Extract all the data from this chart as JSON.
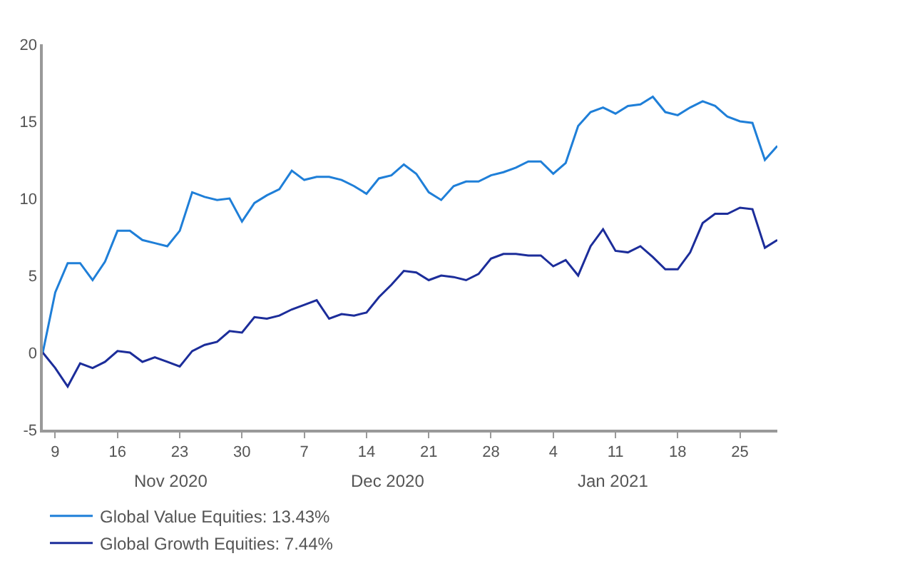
{
  "chart_data": {
    "type": "line",
    "categories": [
      null,
      "9",
      null,
      null,
      null,
      null,
      "16",
      null,
      null,
      null,
      null,
      "23",
      null,
      null,
      null,
      null,
      "30",
      null,
      null,
      null,
      null,
      "7",
      null,
      null,
      null,
      null,
      "14",
      null,
      null,
      null,
      null,
      "21",
      null,
      null,
      null,
      null,
      "28",
      null,
      null,
      null,
      null,
      "4",
      null,
      null,
      null,
      null,
      "11",
      null,
      null,
      null,
      null,
      "18",
      null,
      null,
      null,
      null,
      "25",
      null,
      null,
      null
    ],
    "series": [
      {
        "name": "Global Value Equities: 13.43%",
        "color": "#1f7fd8",
        "values": [
          0,
          3.9,
          5.8,
          5.8,
          4.7,
          5.9,
          7.9,
          7.9,
          7.3,
          7.1,
          6.9,
          7.9,
          10.4,
          10.1,
          9.9,
          10.0,
          8.5,
          9.7,
          10.2,
          10.6,
          11.8,
          11.2,
          11.4,
          11.4,
          11.2,
          10.8,
          10.3,
          11.3,
          11.5,
          12.2,
          11.6,
          10.4,
          9.9,
          10.8,
          11.1,
          11.1,
          11.5,
          11.7,
          12.0,
          12.4,
          12.4,
          11.6,
          12.3,
          14.7,
          15.6,
          15.9,
          15.5,
          16.0,
          16.1,
          16.6,
          15.6,
          15.4,
          15.9,
          16.3,
          16.0,
          15.3,
          15.0,
          14.9,
          12.5,
          13.4
        ]
      },
      {
        "name": "Global Growth Equities: 7.44%",
        "color": "#1c2d9a",
        "values": [
          0,
          -1.0,
          -2.2,
          -0.7,
          -1.0,
          -0.6,
          0.1,
          0.0,
          -0.6,
          -0.3,
          -0.6,
          -0.9,
          0.1,
          0.5,
          0.7,
          1.4,
          1.3,
          2.3,
          2.2,
          2.4,
          2.8,
          3.1,
          3.4,
          2.2,
          2.5,
          2.4,
          2.6,
          3.6,
          4.4,
          5.3,
          5.2,
          4.7,
          5.0,
          4.9,
          4.7,
          5.1,
          6.1,
          6.4,
          6.4,
          6.3,
          6.3,
          5.6,
          6.0,
          5.0,
          6.9,
          8.0,
          6.6,
          6.5,
          6.9,
          6.2,
          5.4,
          5.4,
          6.5,
          8.4,
          9.0,
          9.0,
          9.4,
          9.3,
          6.8,
          7.3
        ]
      }
    ],
    "ylim": [
      -5,
      20
    ],
    "yticks": [
      -5,
      0,
      5,
      10,
      15,
      20
    ],
    "annotations": [
      "Nov 2020",
      "Dec 2020",
      "Jan 2021"
    ],
    "legend": "bottom left",
    "marker": "none",
    "line_style": "solid"
  }
}
